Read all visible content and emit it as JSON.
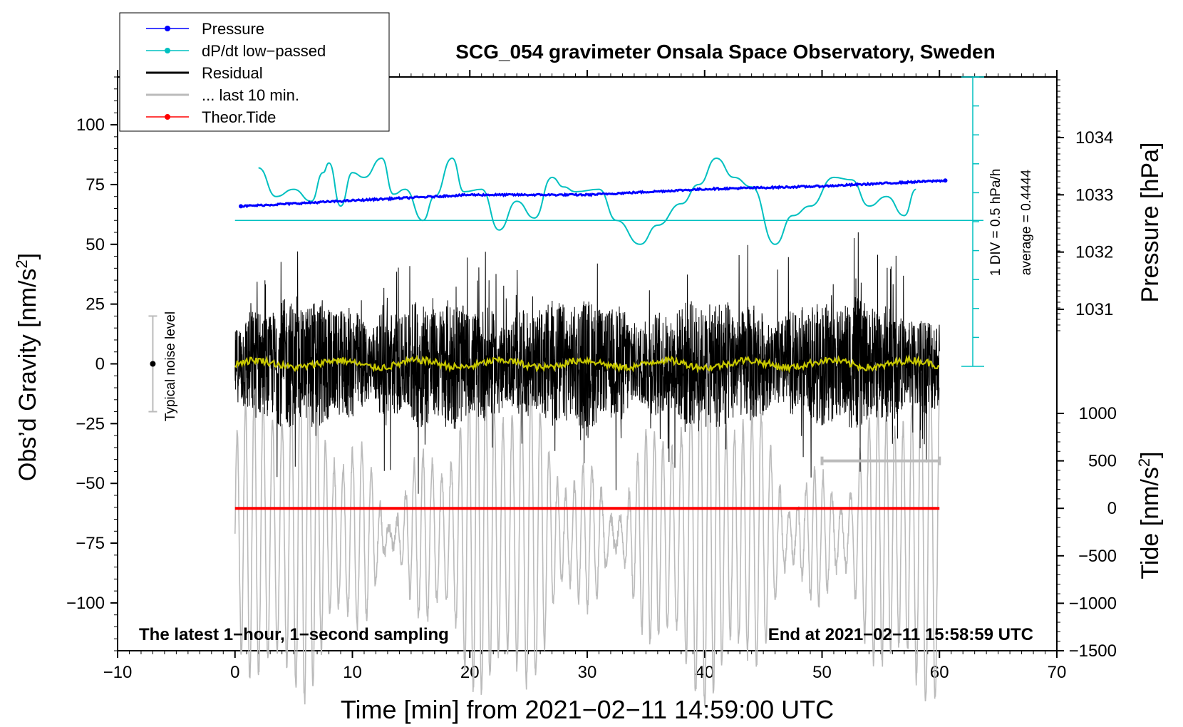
{
  "chart_data": {
    "type": "line",
    "title": "SCG_054 gravimeter Onsala Space Observatory, Sweden",
    "xlabel": "Time [min] from 2021−02−11 14:59:00 UTC",
    "ylabel_left": "Obs’d Gravity [nm/s",
    "ylabel_left_sup": "2",
    "ylabel_left_end": "]",
    "ylabel_right_pressure": "Pressure [hPa]",
    "ylabel_right_tide": "Tide [nm/s",
    "ylabel_right_tide_sup": "2",
    "ylabel_right_tide_end": "]",
    "xlim": [
      -10,
      70
    ],
    "ylim_left": [
      -120,
      120
    ],
    "x_ticks": [
      {
        "v": -10,
        "label": "−10"
      },
      {
        "v": 0,
        "label": "0"
      },
      {
        "v": 10,
        "label": "10"
      },
      {
        "v": 20,
        "label": "20"
      },
      {
        "v": 30,
        "label": "30"
      },
      {
        "v": 40,
        "label": "40"
      },
      {
        "v": 50,
        "label": "50"
      },
      {
        "v": 60,
        "label": "60"
      },
      {
        "v": 70,
        "label": "70"
      }
    ],
    "y_ticks_left": [
      {
        "v": 100,
        "label": "100"
      },
      {
        "v": 75,
        "label": "75"
      },
      {
        "v": 50,
        "label": "50"
      },
      {
        "v": 25,
        "label": "25"
      },
      {
        "v": 0,
        "label": "0"
      },
      {
        "v": -25,
        "label": "−25"
      },
      {
        "v": -50,
        "label": "−50"
      },
      {
        "v": -75,
        "label": "−75"
      },
      {
        "v": -100,
        "label": "−100"
      }
    ],
    "pressure_axis": {
      "ticks": [
        {
          "v": 1034,
          "label": "1034"
        },
        {
          "v": 1033,
          "label": "1033"
        },
        {
          "v": 1032,
          "label": "1032"
        },
        {
          "v": 1031,
          "label": "1031"
        }
      ],
      "range": [
        1031,
        1034
      ]
    },
    "tide_axis": {
      "ticks": [
        {
          "v": 1000,
          "label": "1000"
        },
        {
          "v": 500,
          "label": "500"
        },
        {
          "v": 0,
          "label": "0"
        },
        {
          "v": -500,
          "label": "−500"
        },
        {
          "v": -1000,
          "label": "−1000"
        },
        {
          "v": -1500,
          "label": "−1500"
        }
      ],
      "range": [
        -1500,
        1000
      ]
    },
    "legend": {
      "placement": "top-left",
      "entries": [
        {
          "name": "Pressure",
          "color": "#0000ff",
          "marker": true
        },
        {
          "name": "dP/dt low−passed",
          "color": "#00c0c0",
          "marker": true
        },
        {
          "name": "Residual",
          "color": "#000000",
          "marker": false
        },
        {
          "name": "... last 10 min.",
          "color": "#bbbbbb",
          "marker": false
        },
        {
          "name": "Theor.Tide",
          "color": "#ff0000",
          "marker": true
        }
      ]
    },
    "series": [
      {
        "name": "Pressure",
        "color": "#0000ff",
        "unit": "hPa",
        "x": [
          0.5,
          10,
          20,
          30,
          40,
          50,
          60.5
        ],
        "values": [
          1032.8,
          1032.9,
          1033.0,
          1033.0,
          1033.1,
          1033.15,
          1033.25
        ]
      },
      {
        "name": "dP/dt low−passed",
        "color": "#00c0c0",
        "baseline_gravity_units": 60,
        "x": [
          2,
          3.5,
          5,
          6.5,
          7.5,
          8,
          9,
          10,
          11,
          12.5,
          13.5,
          14.5,
          16,
          17,
          18.5,
          19.5,
          21,
          22.5,
          24,
          25.5,
          27,
          28,
          29,
          31,
          32.5,
          34.5,
          36,
          38,
          39.5,
          41,
          42.5,
          44,
          46,
          47.5,
          49,
          51,
          52.5,
          54,
          55.5,
          57,
          58
        ],
        "values": [
          82,
          70,
          73,
          68,
          80,
          84,
          66,
          80,
          78,
          86,
          71,
          73,
          60,
          70,
          86,
          72,
          73,
          56,
          68,
          61,
          78,
          74,
          72,
          73,
          60,
          50,
          58,
          67,
          75,
          86,
          78,
          74,
          50,
          62,
          66,
          78,
          77,
          66,
          70,
          62,
          73
        ]
      },
      {
        "name": "Theor.Tide",
        "color": "#ff0000",
        "unit": "nm/s2",
        "x": [
          0,
          60
        ],
        "values": [
          0,
          0
        ]
      },
      {
        "name": "Residual",
        "color": "#000000",
        "x_range": [
          0,
          60
        ],
        "amplitude_approx": 30
      },
      {
        "name": "Residual smoothed",
        "color": "#c8c800",
        "x_range": [
          0,
          60
        ],
        "values_approx": 0
      },
      {
        "name": "... last 10 min.",
        "color": "#bbbbbb",
        "x_range": [
          0,
          60
        ]
      }
    ],
    "pressure_scale": {
      "label": "1 DIV = 0.5 hPa/h",
      "average_label": "average = 0.4444"
    },
    "noise_marker": {
      "label": "Typical noise level",
      "x": -7,
      "y": 0,
      "range": [
        -20,
        20
      ]
    },
    "ten_min_bar": {
      "x_range": [
        50,
        60
      ],
      "y": -40
    },
    "annotations": {
      "bottom_left": "The latest 1−hour, 1−second sampling",
      "bottom_right": "End at 2021−02−11 15:58:59 UTC"
    }
  }
}
